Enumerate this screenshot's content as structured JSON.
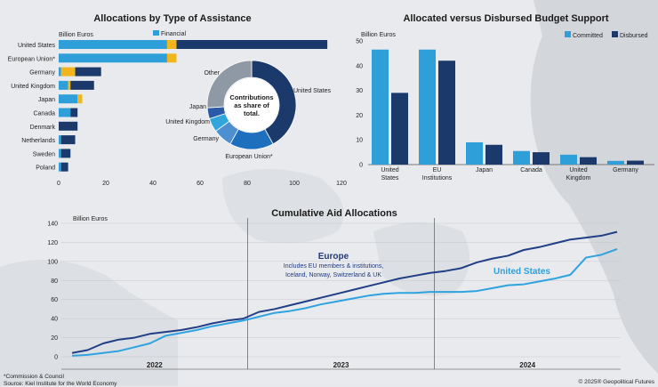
{
  "colors": {
    "dark_blue": "#1b3a6b",
    "light_blue": "#2e9fd9",
    "gold": "#f2b51c",
    "grey": "#8f99a5",
    "europe_line": "#213f86",
    "us_line": "#2fa3e0",
    "annotation_us": "#2e9fd9",
    "annotation_eu": "#1e3a80"
  },
  "panel1": {
    "title": "Allocations by Type of Assistance",
    "unit_label": "Billion Euros",
    "legend_label": "Financial",
    "footnote": "*Commission & Council",
    "chart_data": {
      "type": "bar",
      "orientation": "horizontal",
      "stacked": true,
      "categories": [
        "United States",
        "European Union*",
        "Germany",
        "United Kingdom",
        "Japan",
        "Canada",
        "Denmark",
        "Netherlands",
        "Sweden",
        "Poland"
      ],
      "series": [
        {
          "name": "Financial",
          "values": [
            46,
            46,
            1,
            4,
            8,
            5,
            0,
            1,
            1,
            1
          ]
        },
        {
          "values": [
            4,
            4,
            6,
            1,
            2,
            0,
            0,
            0,
            0,
            0
          ]
        },
        {
          "values": [
            64,
            0,
            11,
            10,
            0,
            3,
            8,
            6,
            4,
            3
          ]
        }
      ],
      "xlim": [
        0,
        120
      ],
      "xticks": [
        0,
        20,
        40,
        60,
        80,
        100,
        120
      ]
    },
    "donut": {
      "center_text": [
        "Contributions",
        "as share of",
        "total."
      ],
      "chart_data": {
        "type": "pie",
        "labels": [
          "United States",
          "European Union*",
          "Germany",
          "United Kingdom",
          "Japan",
          "Other"
        ],
        "values": [
          42,
          16,
          7,
          5,
          4,
          26
        ]
      }
    }
  },
  "panel2": {
    "title": "Allocated versus Disbursed Budget Support",
    "unit_label": "Billion Euros",
    "chart_data": {
      "type": "bar",
      "categories": [
        [
          "United",
          "States"
        ],
        [
          "EU",
          "Institutions"
        ],
        [
          "Japan"
        ],
        [
          "Canada"
        ],
        [
          "United",
          "Kingdom"
        ],
        [
          "Germany"
        ]
      ],
      "series": [
        {
          "name": "Committed",
          "values": [
            46.5,
            46.5,
            9,
            5.5,
            4,
            1.5
          ]
        },
        {
          "name": "Disbursed",
          "values": [
            29,
            42,
            8,
            5,
            3,
            1.6
          ]
        }
      ],
      "ylim": [
        0,
        50
      ],
      "yticks": [
        0,
        10,
        20,
        30,
        40,
        50
      ]
    }
  },
  "panel3": {
    "title": "Cumulative Aid Allocations",
    "unit_label": "Billion Euros",
    "europe_label": "Europe",
    "europe_sub": [
      "Includes EU members & institutions,",
      "Iceland, Norway, Switzerland & UK"
    ],
    "us_label": "United States",
    "chart_data": {
      "type": "line",
      "x_start": "2022-01",
      "x_end": "2024-12",
      "x_labels": [
        "2022",
        "2023",
        "2024"
      ],
      "ylim": [
        0,
        140
      ],
      "yticks": [
        0,
        20,
        40,
        60,
        80,
        100,
        120,
        140
      ],
      "series": [
        {
          "name": "Europe",
          "values": [
            4,
            7,
            14,
            18,
            20,
            24,
            26,
            28,
            31,
            35,
            38,
            40,
            47,
            50,
            54,
            58,
            62,
            66,
            70,
            74,
            78,
            82,
            85,
            88,
            90,
            93,
            99,
            103,
            106,
            112,
            115,
            119,
            123,
            125,
            127,
            131
          ]
        },
        {
          "name": "United States",
          "values": [
            1,
            2,
            4,
            6,
            10,
            14,
            22,
            25,
            28,
            32,
            35,
            38,
            42,
            46,
            48,
            51,
            55,
            58,
            61,
            64,
            66,
            67,
            67,
            68,
            68,
            68,
            69,
            72,
            75,
            76,
            79,
            82,
            86,
            104,
            107,
            113
          ]
        }
      ]
    }
  },
  "source_text": "Source: Kiel Institute for the World Economy",
  "copyright": "© 2025® Geopolitical Futures"
}
